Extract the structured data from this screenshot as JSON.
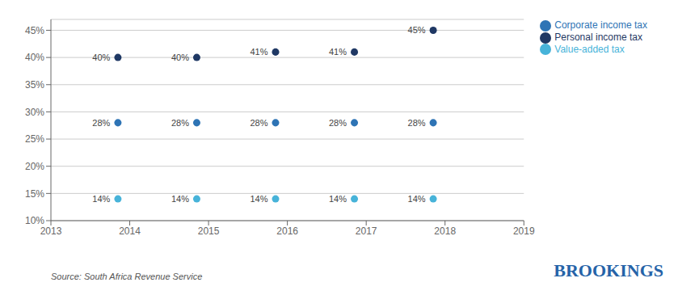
{
  "chart_data": {
    "type": "scatter",
    "x": [
      2013.85,
      2014.85,
      2015.85,
      2016.85,
      2017.85
    ],
    "series": [
      {
        "name": "Personal income tax",
        "color": "#1f3864",
        "values": [
          40,
          40,
          41,
          41,
          45
        ],
        "value_labels": [
          "40%",
          "40%",
          "41%",
          "41%",
          "45%"
        ]
      },
      {
        "name": "Corporate income tax",
        "color": "#2e74b5",
        "values": [
          28,
          28,
          28,
          28,
          28
        ],
        "value_labels": [
          "28%",
          "28%",
          "28%",
          "28%",
          "28%"
        ]
      },
      {
        "name": "Value-added tax",
        "color": "#47b3d9",
        "values": [
          14,
          14,
          14,
          14,
          14
        ],
        "value_labels": [
          "14%",
          "14%",
          "14%",
          "14%",
          "14%"
        ]
      }
    ],
    "xlim": [
      2013,
      2019
    ],
    "xticks": [
      2013,
      2014,
      2015,
      2016,
      2017,
      2018,
      2019
    ],
    "ylim": [
      10,
      47
    ],
    "yticks": [
      {
        "value": 10,
        "label": "10%"
      },
      {
        "value": 15,
        "label": "15%"
      },
      {
        "value": 20,
        "label": "20%"
      },
      {
        "value": 25,
        "label": "25%"
      },
      {
        "value": 30,
        "label": "30%"
      },
      {
        "value": 35,
        "label": "35%"
      },
      {
        "value": 40,
        "label": "40%"
      },
      {
        "value": 45,
        "label": "45%"
      }
    ],
    "grid": "y",
    "legend": "right",
    "data_labels": true,
    "annotations": [
      "Source: South Africa Revenue Service",
      "BROOKINGS"
    ]
  }
}
